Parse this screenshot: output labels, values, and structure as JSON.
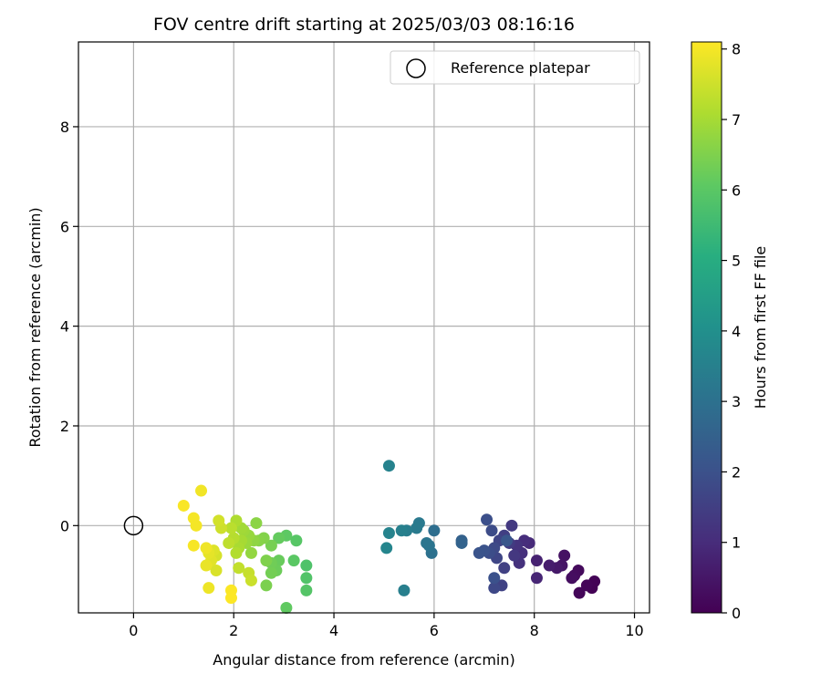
{
  "chart_data": {
    "type": "scatter",
    "title": "FOV centre drift starting at 2025/03/03 08:16:16",
    "xlabel": "Angular distance from reference (arcmin)",
    "ylabel": "Rotation from reference (arcmin)",
    "xlim": [
      -1.1,
      10.3
    ],
    "ylim": [
      -1.75,
      9.7
    ],
    "xticks": [
      0,
      2,
      4,
      6,
      8,
      10
    ],
    "yticks": [
      0,
      2,
      4,
      6,
      8
    ],
    "grid": true,
    "legend": {
      "position": "top-right",
      "label": "Reference platepar",
      "marker": "open-circle"
    },
    "reference_point": {
      "x": 0,
      "y": 0
    },
    "colorbar": {
      "label": "Hours from first FF file",
      "min": 0,
      "max": 8.1,
      "ticks": [
        0,
        1,
        2,
        3,
        4,
        5,
        6,
        7,
        8
      ],
      "colormap": "viridis"
    },
    "points": [
      {
        "x": 9.15,
        "y": -1.25,
        "t": 0.02
      },
      {
        "x": 9.2,
        "y": -1.12,
        "t": 0.05
      },
      {
        "x": 9.05,
        "y": -1.2,
        "t": 0.1
      },
      {
        "x": 8.9,
        "y": -1.35,
        "t": 0.12
      },
      {
        "x": 8.88,
        "y": -0.9,
        "t": 0.2
      },
      {
        "x": 8.8,
        "y": -1.0,
        "t": 0.25
      },
      {
        "x": 8.75,
        "y": -1.05,
        "t": 0.3
      },
      {
        "x": 8.6,
        "y": -0.6,
        "t": 0.4
      },
      {
        "x": 8.55,
        "y": -0.8,
        "t": 0.45
      },
      {
        "x": 8.45,
        "y": -0.85,
        "t": 0.55
      },
      {
        "x": 8.3,
        "y": -0.8,
        "t": 0.65
      },
      {
        "x": 8.05,
        "y": -0.7,
        "t": 0.75
      },
      {
        "x": 8.05,
        "y": -1.05,
        "t": 0.85
      },
      {
        "x": 7.9,
        "y": -0.35,
        "t": 0.95
      },
      {
        "x": 7.8,
        "y": -0.3,
        "t": 1.05
      },
      {
        "x": 7.75,
        "y": -0.55,
        "t": 1.1
      },
      {
        "x": 7.7,
        "y": -0.75,
        "t": 1.15
      },
      {
        "x": 7.65,
        "y": -0.4,
        "t": 1.2
      },
      {
        "x": 7.6,
        "y": -0.6,
        "t": 1.3
      },
      {
        "x": 7.55,
        "y": 0.0,
        "t": 1.35
      },
      {
        "x": 7.5,
        "y": -0.35,
        "t": 1.4
      },
      {
        "x": 7.4,
        "y": -0.2,
        "t": 1.5
      },
      {
        "x": 7.4,
        "y": -0.85,
        "t": 1.55
      },
      {
        "x": 7.35,
        "y": -1.2,
        "t": 1.6
      },
      {
        "x": 7.3,
        "y": -0.3,
        "t": 1.65
      },
      {
        "x": 7.25,
        "y": -0.65,
        "t": 1.7
      },
      {
        "x": 7.2,
        "y": -1.25,
        "t": 1.75
      },
      {
        "x": 7.2,
        "y": -0.45,
        "t": 1.8
      },
      {
        "x": 7.15,
        "y": -0.1,
        "t": 1.85
      },
      {
        "x": 7.1,
        "y": -0.55,
        "t": 1.9
      },
      {
        "x": 7.05,
        "y": 0.12,
        "t": 1.95
      },
      {
        "x": 7.2,
        "y": -1.05,
        "t": 2.0
      },
      {
        "x": 7.0,
        "y": -0.5,
        "t": 2.05
      },
      {
        "x": 6.9,
        "y": -0.55,
        "t": 2.1
      },
      {
        "x": 7.45,
        "y": -0.3,
        "t": 2.15
      },
      {
        "x": 6.55,
        "y": -0.3,
        "t": 2.5
      },
      {
        "x": 6.55,
        "y": -0.35,
        "t": 2.55
      },
      {
        "x": 6.0,
        "y": -0.1,
        "t": 2.9
      },
      {
        "x": 5.95,
        "y": -0.55,
        "t": 3.0
      },
      {
        "x": 5.9,
        "y": -0.4,
        "t": 3.1
      },
      {
        "x": 5.85,
        "y": -0.35,
        "t": 3.15
      },
      {
        "x": 5.7,
        "y": 0.05,
        "t": 3.25
      },
      {
        "x": 5.65,
        "y": -0.05,
        "t": 3.3
      },
      {
        "x": 5.45,
        "y": -0.1,
        "t": 3.4
      },
      {
        "x": 5.4,
        "y": -1.3,
        "t": 3.45
      },
      {
        "x": 5.35,
        "y": -0.1,
        "t": 3.5
      },
      {
        "x": 5.1,
        "y": 1.2,
        "t": 3.55
      },
      {
        "x": 5.1,
        "y": -0.15,
        "t": 3.6
      },
      {
        "x": 5.05,
        "y": -0.45,
        "t": 3.65
      },
      {
        "x": 3.45,
        "y": -0.8,
        "t": 5.8
      },
      {
        "x": 3.45,
        "y": -1.05,
        "t": 5.85
      },
      {
        "x": 3.45,
        "y": -1.3,
        "t": 5.9
      },
      {
        "x": 3.25,
        "y": -0.3,
        "t": 5.95
      },
      {
        "x": 3.2,
        "y": -0.7,
        "t": 6.0
      },
      {
        "x": 3.05,
        "y": -0.2,
        "t": 6.05
      },
      {
        "x": 3.05,
        "y": -1.65,
        "t": 6.1
      },
      {
        "x": 2.9,
        "y": -0.25,
        "t": 6.15
      },
      {
        "x": 2.9,
        "y": -0.7,
        "t": 6.2
      },
      {
        "x": 2.85,
        "y": -0.9,
        "t": 6.25
      },
      {
        "x": 2.75,
        "y": -0.75,
        "t": 6.3
      },
      {
        "x": 2.75,
        "y": -0.95,
        "t": 6.35
      },
      {
        "x": 2.75,
        "y": -0.4,
        "t": 6.4
      },
      {
        "x": 2.65,
        "y": -1.2,
        "t": 6.45
      },
      {
        "x": 2.65,
        "y": -0.7,
        "t": 6.5
      },
      {
        "x": 2.6,
        "y": -0.25,
        "t": 6.55
      },
      {
        "x": 2.5,
        "y": -0.3,
        "t": 6.6
      },
      {
        "x": 2.45,
        "y": 0.05,
        "t": 6.65
      },
      {
        "x": 2.4,
        "y": -0.3,
        "t": 6.7
      },
      {
        "x": 2.35,
        "y": -0.55,
        "t": 6.75
      },
      {
        "x": 2.3,
        "y": -0.2,
        "t": 6.8
      },
      {
        "x": 2.25,
        "y": -0.35,
        "t": 6.85
      },
      {
        "x": 2.2,
        "y": -0.1,
        "t": 6.9
      },
      {
        "x": 2.15,
        "y": -0.05,
        "t": 6.95
      },
      {
        "x": 2.15,
        "y": -0.3,
        "t": 7.0
      },
      {
        "x": 2.1,
        "y": -0.45,
        "t": 7.05
      },
      {
        "x": 2.05,
        "y": 0.1,
        "t": 7.1
      },
      {
        "x": 2.05,
        "y": -0.55,
        "t": 7.15
      },
      {
        "x": 2.0,
        "y": -0.25,
        "t": 7.2
      },
      {
        "x": 1.95,
        "y": -0.05,
        "t": 7.25
      },
      {
        "x": 1.9,
        "y": -0.35,
        "t": 7.3
      },
      {
        "x": 2.1,
        "y": -0.85,
        "t": 7.35
      },
      {
        "x": 2.3,
        "y": -0.95,
        "t": 7.4
      },
      {
        "x": 2.35,
        "y": -1.1,
        "t": 7.45
      },
      {
        "x": 1.75,
        "y": -0.05,
        "t": 7.5
      },
      {
        "x": 1.7,
        "y": 0.1,
        "t": 7.55
      },
      {
        "x": 1.65,
        "y": -0.6,
        "t": 7.6
      },
      {
        "x": 1.65,
        "y": -0.9,
        "t": 7.65
      },
      {
        "x": 1.6,
        "y": -0.5,
        "t": 7.7
      },
      {
        "x": 1.55,
        "y": -0.7,
        "t": 7.75
      },
      {
        "x": 1.5,
        "y": -0.55,
        "t": 7.8
      },
      {
        "x": 1.45,
        "y": -0.8,
        "t": 7.85
      },
      {
        "x": 1.5,
        "y": -1.25,
        "t": 7.9
      },
      {
        "x": 1.45,
        "y": -0.45,
        "t": 7.92
      },
      {
        "x": 1.35,
        "y": 0.7,
        "t": 7.95
      },
      {
        "x": 1.25,
        "y": 0.0,
        "t": 7.98
      },
      {
        "x": 1.2,
        "y": 0.15,
        "t": 8.0
      },
      {
        "x": 1.2,
        "y": -0.4,
        "t": 8.02
      },
      {
        "x": 1.0,
        "y": 0.4,
        "t": 8.05
      },
      {
        "x": 1.95,
        "y": -1.3,
        "t": 8.07
      },
      {
        "x": 1.95,
        "y": -1.45,
        "t": 8.09
      }
    ]
  }
}
